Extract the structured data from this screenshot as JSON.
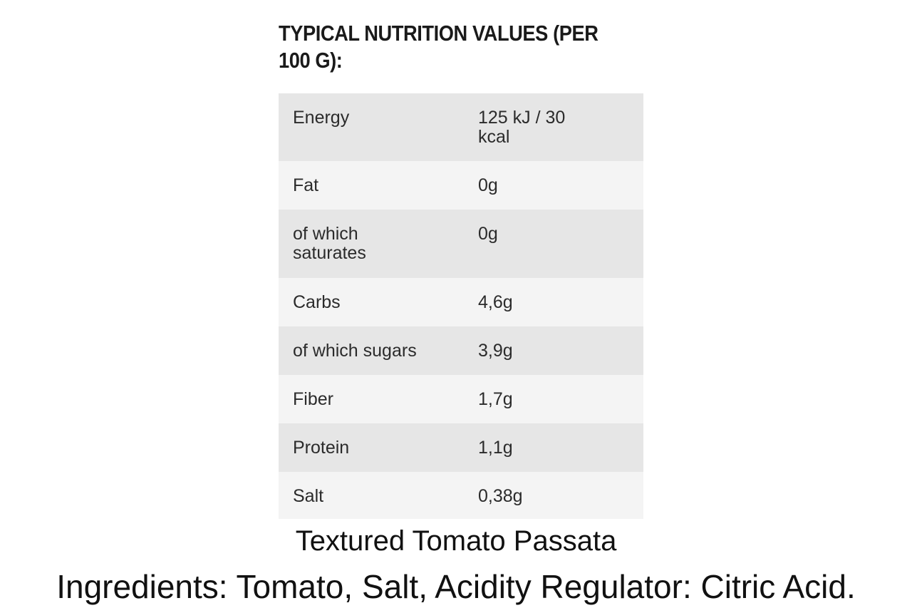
{
  "heading": "TYPICAL NUTRITION VALUES (PER 100 G):",
  "nutrition_table": {
    "rows": [
      {
        "name": "Energy",
        "value": "125 kJ / 30 kcal"
      },
      {
        "name": "Fat",
        "value": "0g"
      },
      {
        "name": "of which saturates",
        "value": "0g"
      },
      {
        "name": "Carbs",
        "value": "4,6g"
      },
      {
        "name": "of which sugars",
        "value": "3,9g"
      },
      {
        "name": "Fiber",
        "value": "1,7g"
      },
      {
        "name": "Protein",
        "value": "1,1g"
      },
      {
        "name": "Salt",
        "value": "0,38g"
      }
    ]
  },
  "product_name": "Textured Tomato Passata",
  "ingredients": "Ingredients: Tomato, Salt, Acidity Regulator: Citric Acid.",
  "colors": {
    "row_dark": "#e6e6e6",
    "row_light": "#f4f4f4",
    "text": "#2b2b2b"
  }
}
